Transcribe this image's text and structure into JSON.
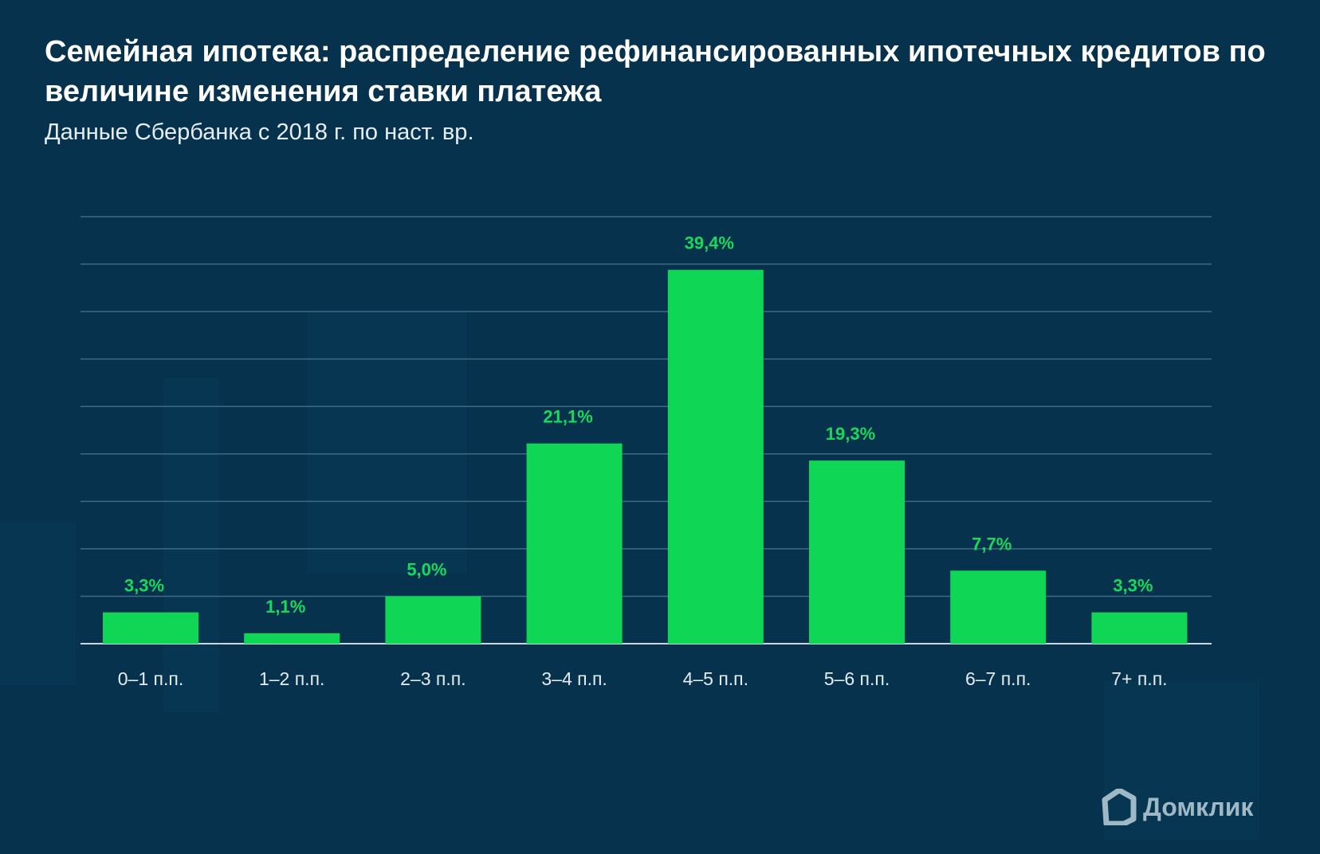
{
  "title": "Семейная ипотека: распределение рефинансированных ипотечных кредитов по величине изменения ставки платежа",
  "subtitle": "Данные Сбербанка с 2018 г. по наст. вр.",
  "logo_text": "Домклик",
  "colors": {
    "bar": "#0fd655",
    "label": "#19d95c",
    "background": "#06324d",
    "grid": "#3f6a85"
  },
  "chart_data": {
    "type": "bar",
    "title": "Семейная ипотека: распределение рефинансированных ипотечных кредитов по величине изменения ставки платежа",
    "categories": [
      "0–1 п.п.",
      "1–2 п.п.",
      "2–3 п.п.",
      "3–4 п.п.",
      "4–5 п.п.",
      "5–6 п.п.",
      "6–7 п.п.",
      "7+ п.п."
    ],
    "values": [
      3.3,
      1.1,
      5.0,
      21.1,
      39.4,
      19.3,
      7.7,
      3.3
    ],
    "data_labels": [
      "3,3%",
      "1,1%",
      "5,0%",
      "21,1%",
      "39,4%",
      "19,3%",
      "7,7%",
      "3,3%"
    ],
    "xlabel": "",
    "ylabel": "",
    "ylim": [
      0,
      45
    ],
    "grid_step": 5,
    "grid": true,
    "unit": "%"
  }
}
